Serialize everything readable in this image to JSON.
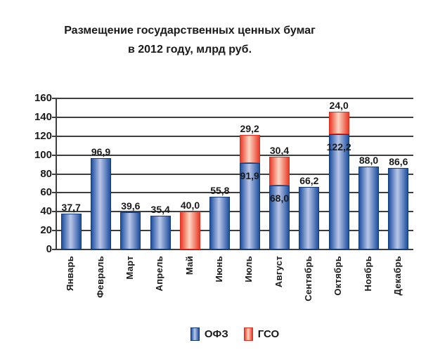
{
  "title": {
    "line1": "Размещение государственных ценных бумаг",
    "line2": "в 2012 году, млрд руб."
  },
  "colors": {
    "ofz_edge": "#1e50a0",
    "ofz_mid": "#bac6e8",
    "ofz_border": "#123a78",
    "gso_edge": "#ea3a27",
    "gso_mid": "#fbd8c4",
    "gso_border": "#e03020",
    "grid": "#3e3e3e",
    "text": "#1a1a1a"
  },
  "chart_data": {
    "type": "bar",
    "stacked": true,
    "title": "Размещение государственных ценных бумаг в 2012 году, млрд руб.",
    "categories": [
      "Январь",
      "Февраль",
      "Март",
      "Апрель",
      "Май",
      "Июнь",
      "Июль",
      "Август",
      "Сентябрь",
      "Октябрь",
      "Ноябрь",
      "Декабрь"
    ],
    "series": [
      {
        "name": "ОФЗ",
        "values": [
          37.7,
          96.9,
          39.6,
          35.4,
          0,
          55.8,
          91.9,
          68.0,
          66.2,
          122.2,
          88.0,
          86.6
        ],
        "labels": [
          "37,7",
          "96,9",
          "39,6",
          "35,4",
          null,
          "55,8",
          "91,9",
          "68,0",
          "66,2",
          "122,2",
          "88,0",
          "86,6"
        ]
      },
      {
        "name": "ГСО",
        "values": [
          0,
          0,
          0,
          0,
          40.0,
          0,
          29.2,
          30.4,
          0,
          24.0,
          0,
          0
        ],
        "labels": [
          null,
          null,
          null,
          null,
          "40,0",
          null,
          "29,2",
          "30,4",
          null,
          "24,0",
          null,
          null
        ]
      }
    ],
    "ylim": [
      0,
      160
    ],
    "ytick_step": 20,
    "grid": true,
    "legend_position": "bottom"
  }
}
